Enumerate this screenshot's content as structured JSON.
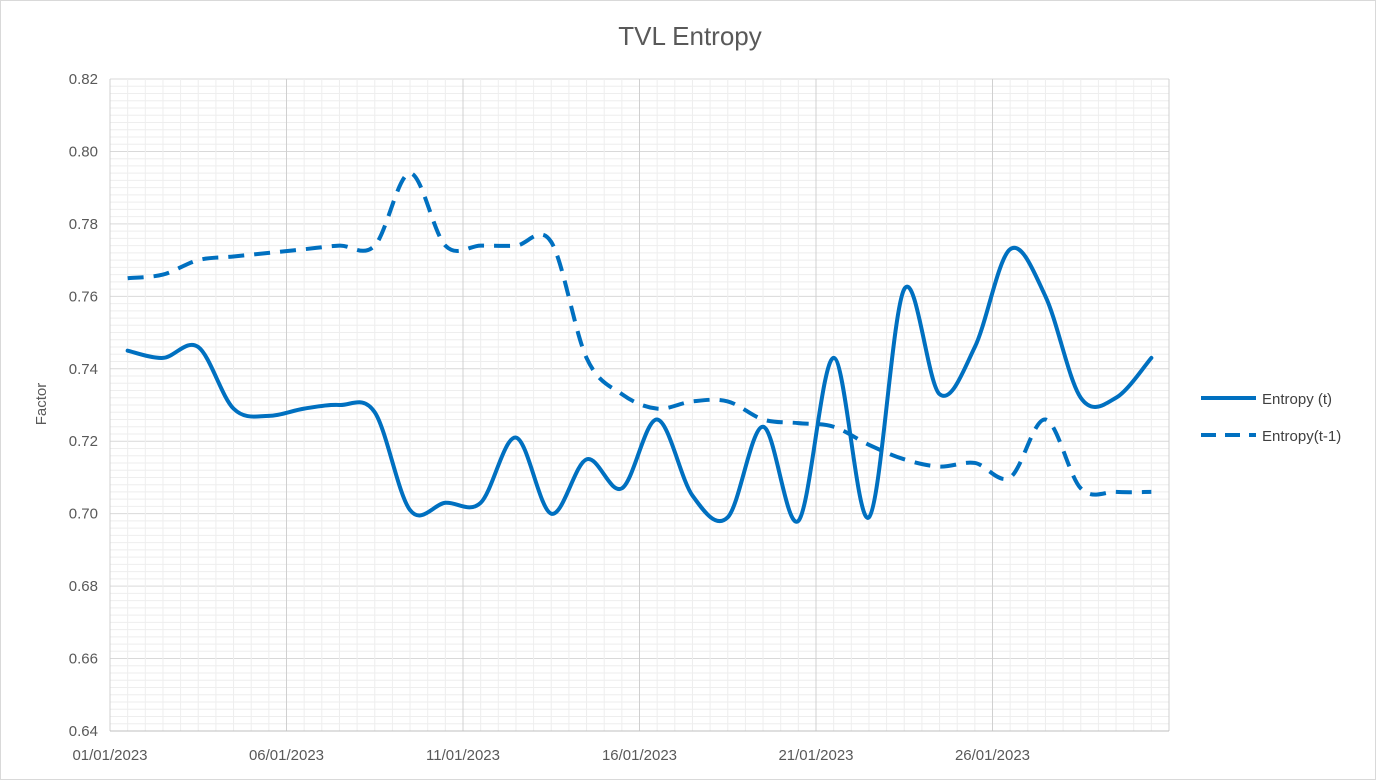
{
  "chart_data": {
    "type": "line",
    "title": "TVL Entropy",
    "xlabel": "",
    "ylabel": "Factor",
    "ylim": [
      0.64,
      0.82
    ],
    "y_ticks": [
      "0.64",
      "0.66",
      "0.68",
      "0.70",
      "0.72",
      "0.74",
      "0.76",
      "0.78",
      "0.80",
      "0.82"
    ],
    "x_tick_labels": [
      "01/01/2023",
      "06/01/2023",
      "11/01/2023",
      "16/01/2023",
      "21/01/2023",
      "26/01/2023"
    ],
    "x": [
      "01/01/2023",
      "02/01/2023",
      "03/01/2023",
      "04/01/2023",
      "05/01/2023",
      "06/01/2023",
      "07/01/2023",
      "08/01/2023",
      "09/01/2023",
      "10/01/2023",
      "11/01/2023",
      "12/01/2023",
      "13/01/2023",
      "14/01/2023",
      "15/01/2023",
      "16/01/2023",
      "17/01/2023",
      "18/01/2023",
      "19/01/2023",
      "20/01/2023",
      "21/01/2023",
      "22/01/2023",
      "23/01/2023",
      "24/01/2023",
      "25/01/2023",
      "26/01/2023",
      "27/01/2023",
      "28/01/2023",
      "29/01/2023",
      "30/01/2023"
    ],
    "series": [
      {
        "name": "Entropy (t)",
        "style": "solid",
        "color": "#0070C0",
        "values": [
          0.745,
          0.743,
          0.746,
          0.729,
          0.727,
          0.729,
          0.73,
          0.728,
          0.701,
          0.703,
          0.703,
          0.721,
          0.7,
          0.715,
          0.707,
          0.726,
          0.705,
          0.699,
          0.724,
          0.698,
          0.743,
          0.699,
          0.762,
          0.733,
          0.746,
          0.773,
          0.76,
          0.732,
          0.732,
          0.743
        ]
      },
      {
        "name": "Entropy(t-1)",
        "style": "dashed",
        "color": "#0070C0",
        "values": [
          0.765,
          0.766,
          0.77,
          0.771,
          0.772,
          0.773,
          0.774,
          0.774,
          0.794,
          0.774,
          0.774,
          0.774,
          0.775,
          0.743,
          0.733,
          0.729,
          0.731,
          0.731,
          0.726,
          0.725,
          0.724,
          0.719,
          0.715,
          0.713,
          0.714,
          0.71,
          0.726,
          0.707,
          0.706,
          0.706
        ]
      }
    ],
    "grid": true,
    "legend_position": "right"
  }
}
